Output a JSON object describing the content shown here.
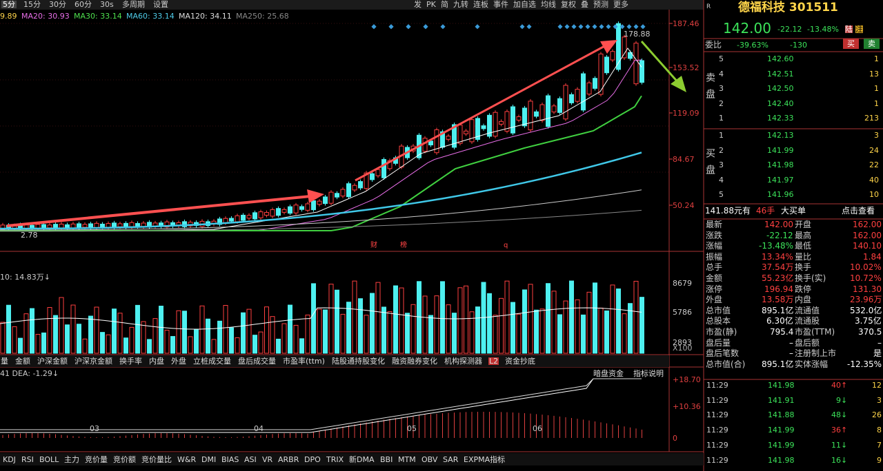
{
  "toolbar": {
    "periods": [
      "5分",
      "15分",
      "30分",
      "60分",
      "30s",
      "多周期",
      "设置"
    ],
    "tools": [
      "发",
      "PK",
      "简",
      "九转",
      "连板",
      "事件",
      "加自选",
      "均线",
      "复权",
      "叠",
      "预测",
      "更多"
    ]
  },
  "main_chart": {
    "ma_legend": [
      "9.89",
      "MA20: 30.93",
      "MA30: 33.14",
      "MA60: 33.14",
      "MA120: 34.11",
      "MA250: 25.68"
    ],
    "price_axis": [
      "187.46",
      "153.52",
      "119.09",
      "84.67",
      "50.24"
    ],
    "high_label": "178.88",
    "low_label": "2.78",
    "markers": [
      "财",
      "榜",
      "q"
    ]
  },
  "volume_chart": {
    "header": "10: 14.83万↓",
    "axis": [
      "8679",
      "5786",
      "2893",
      "X100"
    ]
  },
  "indicator_tabs": [
    "量",
    "金额",
    "沪深金额",
    "沪深京金额",
    "换手率",
    "内盘",
    "外盘",
    "立桩成交量",
    "盘后成交量",
    "市盈率(ttm)",
    "陆股通持股变化",
    "融资融券变化",
    "机构探测器",
    "L2",
    "资金抄底"
  ],
  "macd_chart": {
    "header": "41 DEA: -1.29↓",
    "buttons": [
      "暗盘资金",
      "指标说明"
    ],
    "axis": [
      "+18.70",
      "+10.36",
      "0"
    ],
    "dates": [
      "03",
      "04",
      "05",
      "06"
    ]
  },
  "bottom_tabs": [
    "KDJ",
    "RSI",
    "BOLL",
    "主力",
    "竞价量",
    "竞价额",
    "竞价量比",
    "W&R",
    "DMI",
    "BIAS",
    "ASI",
    "VR",
    "ARBR",
    "DPO",
    "TRIX",
    "新DMA",
    "BBI",
    "MTM",
    "OBV",
    "SAR",
    "EXPMA指标"
  ],
  "quote": {
    "corner": "R",
    "name": "德福科技 301511",
    "price": "142.00",
    "change": "-22.12",
    "change_pct": "-13.48%",
    "badges": [
      "陆",
      "注"
    ],
    "weibi_label": "委比",
    "weibi_pct": "-39.63%",
    "weibi_diff": "-130",
    "buy_btn": "买",
    "sell_btn": "卖",
    "sell_side": "卖盘",
    "buy_side": "买盘",
    "sell": [
      [
        "5",
        "142.60",
        "1"
      ],
      [
        "4",
        "142.51",
        "13"
      ],
      [
        "3",
        "142.50",
        "1"
      ],
      [
        "2",
        "142.40",
        "1"
      ],
      [
        "1",
        "142.33",
        "213"
      ]
    ],
    "buy": [
      [
        "1",
        "142.13",
        "3"
      ],
      [
        "2",
        "141.99",
        "24"
      ],
      [
        "3",
        "141.98",
        "22"
      ],
      [
        "4",
        "141.97",
        "40"
      ],
      [
        "5",
        "141.96",
        "10"
      ]
    ],
    "big_order": [
      "141.88元有",
      "46手",
      "大买单",
      "点击查看"
    ],
    "stats": [
      [
        "最新",
        "142.00",
        "开盘",
        "162.00"
      ],
      [
        "涨跌",
        "-22.12",
        "最高",
        "162.00"
      ],
      [
        "涨幅",
        "-13.48%",
        "最低",
        "140.10"
      ],
      [
        "振幅",
        "13.34%",
        "量比",
        "1.84"
      ],
      [
        "总手",
        "37.54万",
        "换手",
        "10.02%"
      ],
      [
        "金额",
        "55.23亿",
        "换手(实)",
        "10.72%"
      ],
      [
        "涨停",
        "196.94",
        "跌停",
        "131.30"
      ],
      [
        "外盘",
        "13.58万",
        "内盘",
        "23.96万"
      ],
      [
        "总市值",
        "895.1亿",
        "流通值",
        "532.0亿"
      ],
      [
        "总股本",
        "6.30亿",
        "流通股",
        "3.75亿"
      ],
      [
        "市盈(静)",
        "795.4",
        "市盈(TTM)",
        "370.5"
      ],
      [
        "盘后量",
        "–",
        "盘后额",
        "–"
      ],
      [
        "盘后笔数",
        "–",
        "注册制上市",
        "是"
      ],
      [
        "总市值(合)",
        "895.1亿",
        "实体涨幅",
        "-12.35%"
      ]
    ],
    "trades": [
      [
        "11:29",
        "141.98",
        "40↑",
        "12"
      ],
      [
        "11:29",
        "141.91",
        "9↓",
        "3"
      ],
      [
        "11:29",
        "141.88",
        "48↓",
        "26"
      ],
      [
        "11:29",
        "141.99",
        "36↑",
        "8"
      ],
      [
        "11:29",
        "141.99",
        "11↓",
        "7"
      ],
      [
        "11:29",
        "141.98",
        "16↓",
        "9"
      ]
    ]
  }
}
